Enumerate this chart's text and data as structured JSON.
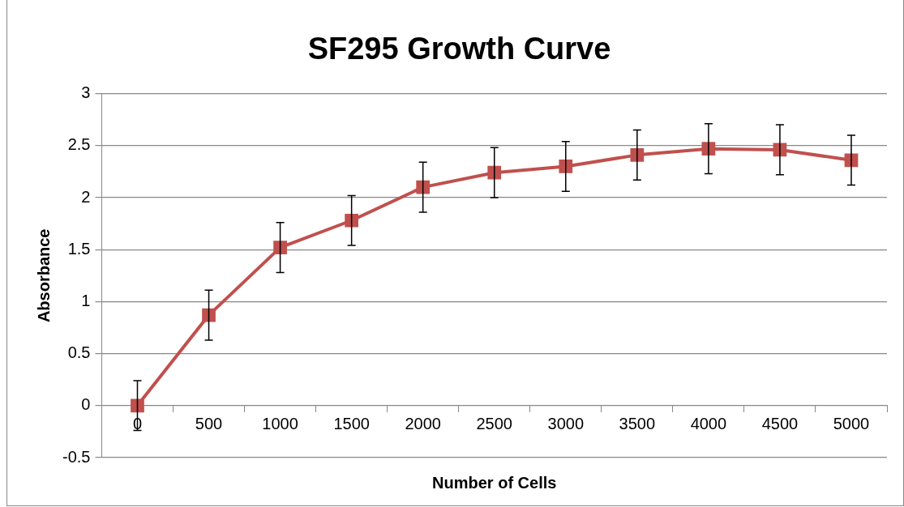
{
  "chart_data": {
    "type": "line",
    "title": "SF295 Growth Curve",
    "xlabel": "Number of Cells",
    "ylabel": "Absorbance",
    "categories": [
      "0",
      "500",
      "1000",
      "1500",
      "2000",
      "2500",
      "3000",
      "3500",
      "4000",
      "4500",
      "5000"
    ],
    "series": [
      {
        "color": "#c0504d",
        "values": [
          0,
          0.87,
          1.52,
          1.78,
          2.1,
          2.24,
          2.3,
          2.41,
          2.47,
          2.46,
          2.36
        ],
        "errors": [
          0.24,
          0.24,
          0.24,
          0.24,
          0.24,
          0.24,
          0.24,
          0.24,
          0.24,
          0.24,
          0.24
        ]
      }
    ],
    "ylim": [
      -0.5,
      3
    ],
    "yticks": [
      -0.5,
      0,
      0.5,
      1,
      1.5,
      2,
      2.5,
      3
    ],
    "grid": "y",
    "legend": false,
    "marker": "square",
    "line_style": "solid"
  }
}
